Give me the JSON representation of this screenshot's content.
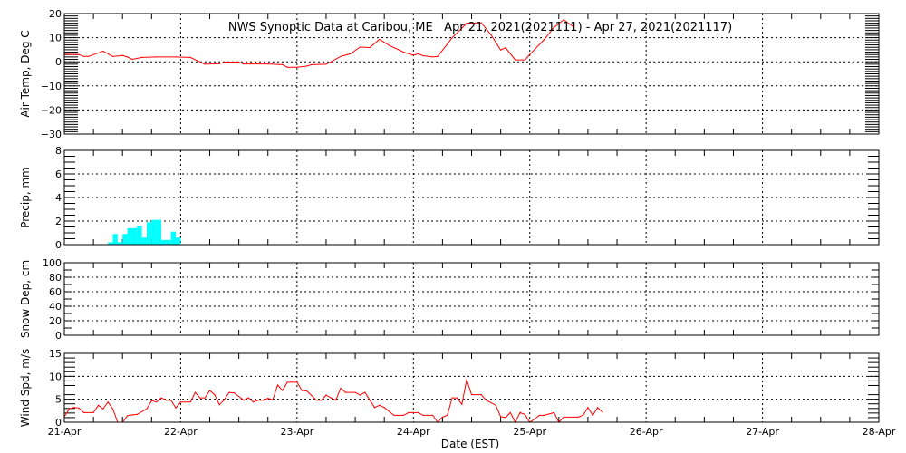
{
  "chart_data": [
    {
      "type": "line",
      "title": "NWS Synoptic Data at Caribou, ME   Apr 21, 2021(2021111) - Apr 27, 2021(2021117)",
      "ylabel": "Air Temp, Deg C",
      "ylim": [
        -30,
        20
      ],
      "yticks": [
        20,
        10,
        0,
        -10,
        -20,
        -30
      ],
      "color": "#ff0000",
      "grid": true,
      "points": [
        [
          "2021-04-21 00:00",
          3.2
        ],
        [
          "2021-04-21 03:00",
          3.0
        ],
        [
          "2021-04-21 04:00",
          2.2
        ],
        [
          "2021-04-21 05:00",
          2.2
        ],
        [
          "2021-04-21 08:00",
          4.4
        ],
        [
          "2021-04-21 10:00",
          2.2
        ],
        [
          "2021-04-21 12:00",
          2.6
        ],
        [
          "2021-04-21 13:00",
          2.0
        ],
        [
          "2021-04-21 14:00",
          1.0
        ],
        [
          "2021-04-21 16:00",
          1.8
        ],
        [
          "2021-04-21 19:00",
          2.0
        ],
        [
          "2021-04-21 23:00",
          2.0
        ],
        [
          "2021-04-22 02:00",
          1.8
        ],
        [
          "2021-04-22 05:00",
          -1.0
        ],
        [
          "2021-04-22 08:00",
          -0.8
        ],
        [
          "2021-04-22 09:00",
          -0.1
        ],
        [
          "2021-04-22 12:00",
          -0.1
        ],
        [
          "2021-04-22 13:00",
          -0.9
        ],
        [
          "2021-04-22 18:00",
          -0.9
        ],
        [
          "2021-04-22 21:00",
          -1.2
        ],
        [
          "2021-04-22 22:00",
          -2.3
        ],
        [
          "2021-04-23 00:00",
          -2.3
        ],
        [
          "2021-04-23 02:00",
          -1.8
        ],
        [
          "2021-04-23 03:00",
          -1.2
        ],
        [
          "2021-04-23 06:00",
          -1.0
        ],
        [
          "2021-04-23 07:00",
          0.0
        ],
        [
          "2021-04-23 09:00",
          2.2
        ],
        [
          "2021-04-23 11:00",
          3.3
        ],
        [
          "2021-04-23 13:00",
          6.1
        ],
        [
          "2021-04-23 15:00",
          5.9
        ],
        [
          "2021-04-23 17:00",
          9.3
        ],
        [
          "2021-04-23 19:00",
          6.8
        ],
        [
          "2021-04-23 22:00",
          4.0
        ],
        [
          "2021-04-24 00:00",
          2.7
        ],
        [
          "2021-04-24 01:00",
          3.3
        ],
        [
          "2021-04-24 02:00",
          2.5
        ],
        [
          "2021-04-24 04:00",
          2.0
        ],
        [
          "2021-04-24 05:00",
          2.2
        ],
        [
          "2021-04-24 07:00",
          7.3
        ],
        [
          "2021-04-24 08:00",
          10.0
        ],
        [
          "2021-04-24 10:00",
          14.0
        ],
        [
          "2021-04-24 11:00",
          16.0
        ],
        [
          "2021-04-24 14:00",
          16.2
        ],
        [
          "2021-04-24 16:00",
          11.2
        ],
        [
          "2021-04-24 18:00",
          4.9
        ],
        [
          "2021-04-24 19:00",
          5.8
        ],
        [
          "2021-04-24 21:00",
          0.8
        ],
        [
          "2021-04-24 23:00",
          0.8
        ],
        [
          "2021-04-25 00:00",
          3.0
        ],
        [
          "2021-04-25 03:00",
          9.3
        ],
        [
          "2021-04-25 05:00",
          14.3
        ],
        [
          "2021-04-25 07:00",
          17.4
        ],
        [
          "2021-04-25 09:00",
          14.5
        ]
      ]
    },
    {
      "type": "bar",
      "ylabel": "Precip, mm",
      "ylim": [
        0,
        8
      ],
      "yticks": [
        8,
        6,
        4,
        2,
        0
      ],
      "color": "#00ffff",
      "grid": true,
      "bars": [
        [
          "2021-04-21 09:00",
          0.2
        ],
        [
          "2021-04-21 10:00",
          0.9
        ],
        [
          "2021-04-21 11:00",
          0.2
        ],
        [
          "2021-04-21 12:00",
          0.9
        ],
        [
          "2021-04-21 13:00",
          1.4
        ],
        [
          "2021-04-21 14:00",
          1.4
        ],
        [
          "2021-04-21 15:00",
          1.6
        ],
        [
          "2021-04-21 16:00",
          0.6
        ],
        [
          "2021-04-21 17:00",
          1.9
        ],
        [
          "2021-04-21 18:00",
          2.1
        ],
        [
          "2021-04-21 19:00",
          2.1
        ],
        [
          "2021-04-21 20:00",
          0.4
        ],
        [
          "2021-04-21 21:00",
          0.4
        ],
        [
          "2021-04-21 22:00",
          1.1
        ],
        [
          "2021-04-21 23:00",
          0.6
        ]
      ]
    },
    {
      "type": "line",
      "ylabel": "Snow Dep, cm",
      "ylim": [
        0,
        100
      ],
      "yticks": [
        100,
        80,
        60,
        40,
        20,
        0
      ],
      "grid": true,
      "points": []
    },
    {
      "type": "line",
      "ylabel": "Wind Spd, m/s",
      "xlabel": "Date (EST)",
      "ylim": [
        0,
        15
      ],
      "yticks": [
        15,
        10,
        5,
        0
      ],
      "color": "#ff0000",
      "grid": true,
      "xticks": [
        "21-Apr",
        "22-Apr",
        "23-Apr",
        "24-Apr",
        "25-Apr",
        "26-Apr",
        "27-Apr",
        "28-Apr"
      ],
      "xlim": [
        "2021-04-21 00:00",
        "2021-04-28 00:00"
      ],
      "points": [
        [
          "2021-04-21 00:00",
          1.2
        ],
        [
          "2021-04-21 01:00",
          2.9
        ],
        [
          "2021-04-21 02:00",
          3.2
        ],
        [
          "2021-04-21 03:00",
          3.1
        ],
        [
          "2021-04-21 04:00",
          2.1
        ],
        [
          "2021-04-21 06:00",
          2.1
        ],
        [
          "2021-04-21 07:00",
          3.7
        ],
        [
          "2021-04-21 08:00",
          2.9
        ],
        [
          "2021-04-21 09:00",
          4.4
        ],
        [
          "2021-04-21 10:00",
          2.9
        ],
        [
          "2021-04-21 11:00",
          0.0
        ],
        [
          "2021-04-21 12:00",
          0.0
        ],
        [
          "2021-04-21 13:00",
          1.4
        ],
        [
          "2021-04-21 14:00",
          1.6
        ],
        [
          "2021-04-21 15:00",
          1.7
        ],
        [
          "2021-04-21 17:00",
          2.9
        ],
        [
          "2021-04-21 18:00",
          4.7
        ],
        [
          "2021-04-21 19:00",
          4.4
        ],
        [
          "2021-04-21 20:00",
          5.3
        ],
        [
          "2021-04-21 21:00",
          4.8
        ],
        [
          "2021-04-21 22:00",
          4.8
        ],
        [
          "2021-04-21 23:00",
          3.1
        ],
        [
          "2021-04-22 00:00",
          4.4
        ],
        [
          "2021-04-22 02:00",
          4.4
        ],
        [
          "2021-04-22 03:00",
          6.5
        ],
        [
          "2021-04-22 04:00",
          5.3
        ],
        [
          "2021-04-22 05:00",
          5.3
        ],
        [
          "2021-04-22 06:00",
          6.9
        ],
        [
          "2021-04-22 07:00",
          6.0
        ],
        [
          "2021-04-22 08:00",
          3.8
        ],
        [
          "2021-04-22 09:00",
          4.9
        ],
        [
          "2021-04-22 10:00",
          6.5
        ],
        [
          "2021-04-22 11:00",
          6.4
        ],
        [
          "2021-04-22 13:00",
          4.8
        ],
        [
          "2021-04-22 14:00",
          5.3
        ],
        [
          "2021-04-22 15:00",
          4.4
        ],
        [
          "2021-04-22 16:00",
          4.8
        ],
        [
          "2021-04-22 17:00",
          4.8
        ],
        [
          "2021-04-22 18:00",
          5.2
        ],
        [
          "2021-04-22 19:00",
          4.9
        ],
        [
          "2021-04-22 20:00",
          8.1
        ],
        [
          "2021-04-22 21:00",
          6.9
        ],
        [
          "2021-04-22 22:00",
          8.7
        ],
        [
          "2021-04-23 00:00",
          8.7
        ],
        [
          "2021-04-23 01:00",
          6.9
        ],
        [
          "2021-04-23 02:00",
          6.8
        ],
        [
          "2021-04-23 04:00",
          4.8
        ],
        [
          "2021-04-23 05:00",
          4.8
        ],
        [
          "2021-04-23 06:00",
          5.9
        ],
        [
          "2021-04-23 07:00",
          5.3
        ],
        [
          "2021-04-23 08:00",
          4.8
        ],
        [
          "2021-04-23 09:00",
          7.4
        ],
        [
          "2021-04-23 10:00",
          6.5
        ],
        [
          "2021-04-23 12:00",
          6.5
        ],
        [
          "2021-04-23 13:00",
          5.9
        ],
        [
          "2021-04-23 14:00",
          6.5
        ],
        [
          "2021-04-23 16:00",
          3.2
        ],
        [
          "2021-04-23 17:00",
          3.7
        ],
        [
          "2021-04-23 18:00",
          3.2
        ],
        [
          "2021-04-23 20:00",
          1.5
        ],
        [
          "2021-04-23 22:00",
          1.5
        ],
        [
          "2021-04-23 23:00",
          2.1
        ],
        [
          "2021-04-24 01:00",
          2.1
        ],
        [
          "2021-04-24 02:00",
          1.5
        ],
        [
          "2021-04-24 04:00",
          1.5
        ],
        [
          "2021-04-24 05:00",
          0.0
        ],
        [
          "2021-04-24 06:00",
          1.1
        ],
        [
          "2021-04-24 07:00",
          1.5
        ],
        [
          "2021-04-24 08:00",
          5.3
        ],
        [
          "2021-04-24 09:00",
          5.3
        ],
        [
          "2021-04-24 10:00",
          3.9
        ],
        [
          "2021-04-24 11:00",
          9.3
        ],
        [
          "2021-04-24 12:00",
          6.0
        ],
        [
          "2021-04-24 14:00",
          6.0
        ],
        [
          "2021-04-24 15:00",
          4.8
        ],
        [
          "2021-04-24 17:00",
          3.7
        ],
        [
          "2021-04-24 18:00",
          1.2
        ],
        [
          "2021-04-24 19:00",
          1.0
        ],
        [
          "2021-04-24 20:00",
          2.1
        ],
        [
          "2021-04-24 21:00",
          0.0
        ],
        [
          "2021-04-24 22:00",
          2.1
        ],
        [
          "2021-04-24 23:00",
          1.7
        ],
        [
          "2021-04-25 00:00",
          0.0
        ],
        [
          "2021-04-25 01:00",
          0.7
        ],
        [
          "2021-04-25 02:00",
          1.5
        ],
        [
          "2021-04-25 03:00",
          1.5
        ],
        [
          "2021-04-25 05:00",
          2.1
        ],
        [
          "2021-04-25 06:00",
          0.0
        ],
        [
          "2021-04-25 07:00",
          1.1
        ],
        [
          "2021-04-25 10:00",
          1.1
        ],
        [
          "2021-04-25 11:00",
          1.5
        ],
        [
          "2021-04-25 12:00",
          3.2
        ],
        [
          "2021-04-25 13:00",
          1.5
        ],
        [
          "2021-04-25 14:00",
          3.2
        ],
        [
          "2021-04-25 15:00",
          2.2
        ]
      ]
    }
  ]
}
